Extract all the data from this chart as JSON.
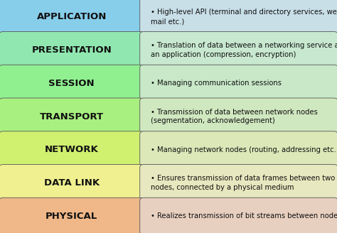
{
  "layers": [
    {
      "name": "APPLICATION",
      "description": "High-level API (terminal and directory services, web, e-\nmail etc.)",
      "label_color": "#87ceeb",
      "row_color": "#c8dfe8"
    },
    {
      "name": "PRESENTATION",
      "description": "Translation of data between a networking service and\nan application (compression, encryption)",
      "label_color": "#90e8b0",
      "row_color": "#c8e8d0"
    },
    {
      "name": "SESSION",
      "description": "Managing communication sessions",
      "label_color": "#90f090",
      "row_color": "#c8e8c8"
    },
    {
      "name": "TRANSPORT",
      "description": "Transmission of data between network nodes\n(segmentation, acknowledgement)",
      "label_color": "#a8f080",
      "row_color": "#d0e8c0"
    },
    {
      "name": "NETWORK",
      "description": "Managing network nodes (routing, addressing etc.)",
      "label_color": "#d0f070",
      "row_color": "#dce8b8"
    },
    {
      "name": "DATA LINK",
      "description": "Ensures transmission of data frames between two\nnodes, connected by a physical medium",
      "label_color": "#f0f090",
      "row_color": "#e8e8c0"
    },
    {
      "name": "PHYSICAL",
      "description": "Realizes transmission of bit streams between nodes",
      "label_color": "#f0b888",
      "row_color": "#e8d0c0"
    }
  ],
  "background_color": "#1a1a1a",
  "border_color": "#555555",
  "text_color": "#111111",
  "desc_text_color": "#111111",
  "label_font_size": 9.5,
  "desc_font_size": 7.2,
  "fig_width": 4.74,
  "fig_height": 3.28,
  "dpi": 100
}
